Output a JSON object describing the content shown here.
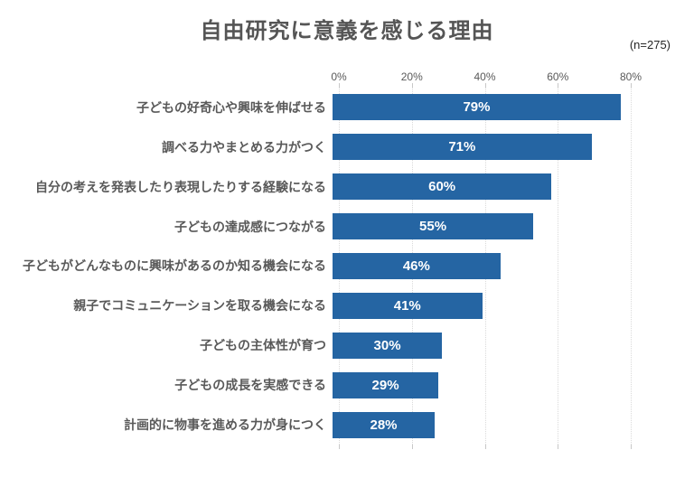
{
  "header": {
    "title": "自由研究に意義を感じる理由",
    "sample_size": "(n=275)"
  },
  "chart_data": {
    "type": "bar",
    "orientation": "horizontal",
    "title": "自由研究に意義を感じる理由",
    "subtitle": "(n=275)",
    "categories": [
      "子どもの好奇心や興味を伸ばせる",
      "調べる力やまとめる力がつく",
      "自分の考えを発表したり表現したりする経験になる",
      "子どもの達成感につながる",
      "子どもがどんなものに興味があるのか知る機会になる",
      "親子でコミュニケーションを取る機会になる",
      "子どもの主体性が育つ",
      "子どもの成長を実感できる",
      "計画的に物事を進める力が身につく"
    ],
    "values": [
      79,
      71,
      60,
      55,
      46,
      41,
      30,
      29,
      28
    ],
    "value_labels": [
      "79%",
      "71%",
      "60%",
      "55%",
      "46%",
      "41%",
      "30%",
      "29%",
      "28%"
    ],
    "x_axis": {
      "ticks": [
        "0%",
        "20%",
        "40%",
        "60%",
        "80%"
      ],
      "tick_values": [
        0,
        20,
        40,
        60,
        80
      ],
      "position": "top"
    },
    "xlim": [
      0,
      97
    ],
    "grid": "vertical-dotted",
    "legend": "none",
    "colors": {
      "bar": "#2565A3",
      "value_label": "#ffffff",
      "category_label": "#595959",
      "axis_label": "#595959",
      "title": "#555555",
      "gridline": "#dadada",
      "background": "#ffffff"
    }
  }
}
